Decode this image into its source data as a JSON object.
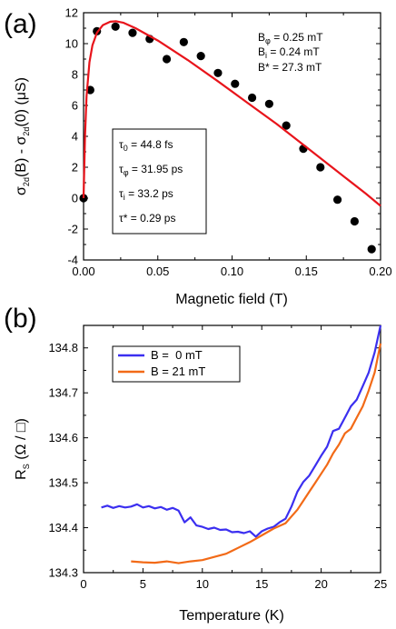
{
  "panels": {
    "a": {
      "label": "(a)",
      "xlabel": "Magnetic field (T)",
      "ylabel_parts": [
        "σ",
        "2d",
        "(B) - σ",
        "2d",
        "(0) (μS)"
      ],
      "params_right": [
        {
          "sym": "B",
          "sub": "φ",
          "val": " = 0.25 mT"
        },
        {
          "sym": "B",
          "sub": "i",
          "val": " = 0.24 mT"
        },
        {
          "sym": "B*",
          "sub": "",
          "val": " = 27.3 mT"
        }
      ],
      "params_box": [
        {
          "sym": "τ",
          "sub": "0",
          "val": " = 44.8 fs"
        },
        {
          "sym": "τ",
          "sub": "φ",
          "val": " = 31.95 ps"
        },
        {
          "sym": "τ",
          "sub": "i",
          "val": " = 33.2 ps"
        },
        {
          "sym": "τ*",
          "sub": "",
          "val": " = 0.29 ps"
        }
      ]
    },
    "b": {
      "label": "(b)",
      "xlabel": "Temperature (K)",
      "ylabel_main": "R",
      "ylabel_sub": "S",
      "ylabel_rest": " (Ω / □)"
    }
  },
  "chart_data": [
    {
      "type": "scatter",
      "panel": "a",
      "xlabel": "Magnetic field (T)",
      "ylabel": "σ2d(B) - σ2d(0) (μS)",
      "xlim": [
        0.0,
        0.2
      ],
      "ylim": [
        -4,
        12
      ],
      "xticks": [
        "0.00",
        "0.05",
        "0.10",
        "0.15",
        "0.20"
      ],
      "yticks": [
        "-4",
        "-2",
        "0",
        "2",
        "4",
        "6",
        "8",
        "10",
        "12"
      ],
      "series": [
        {
          "kind": "points",
          "color": "#000000",
          "x": [
            0.0,
            0.0045,
            0.009,
            0.0215,
            0.033,
            0.0445,
            0.056,
            0.0675,
            0.079,
            0.0905,
            0.102,
            0.1135,
            0.125,
            0.1365,
            0.148,
            0.1595,
            0.171,
            0.1825,
            0.194
          ],
          "y": [
            0.0,
            7.0,
            10.8,
            11.1,
            10.7,
            10.3,
            9.0,
            10.1,
            9.2,
            8.1,
            7.4,
            6.5,
            6.1,
            4.7,
            3.2,
            2.0,
            -0.1,
            -1.5,
            -3.3
          ]
        },
        {
          "kind": "line",
          "color": "#e8141b",
          "x": [
            0.0,
            0.001,
            0.002,
            0.004,
            0.006,
            0.009,
            0.013,
            0.018,
            0.022,
            0.027,
            0.035,
            0.05,
            0.07,
            0.09,
            0.11,
            0.13,
            0.15,
            0.17,
            0.19,
            0.2
          ],
          "y": [
            0.0,
            4.0,
            6.6,
            8.8,
            9.9,
            10.7,
            11.2,
            11.42,
            11.45,
            11.35,
            11.0,
            10.2,
            8.95,
            7.6,
            6.2,
            4.8,
            3.3,
            1.8,
            0.3,
            -0.5
          ]
        }
      ]
    },
    {
      "type": "line",
      "panel": "b",
      "xlabel": "Temperature (K)",
      "ylabel": "RS (Ω / □)",
      "xlim": [
        0,
        25
      ],
      "ylim": [
        134.3,
        134.85
      ],
      "xticks": [
        "0",
        "5",
        "10",
        "15",
        "20",
        "25"
      ],
      "yticks": [
        "134.3",
        "134.4",
        "134.5",
        "134.6",
        "134.7",
        "134.8"
      ],
      "series": [
        {
          "name": "B =  0 mT",
          "color": "#3b2ff0",
          "x": [
            1.5,
            2.0,
            2.5,
            3.0,
            3.5,
            4.0,
            4.5,
            5.0,
            5.5,
            6.0,
            6.5,
            7.0,
            7.5,
            8.0,
            8.5,
            9.0,
            9.5,
            10.0,
            10.5,
            11.0,
            11.5,
            12.0,
            12.5,
            13.0,
            13.5,
            14.0,
            14.5,
            15.0,
            15.5,
            16.0,
            16.5,
            17.0,
            17.5,
            18.0,
            18.5,
            19.0,
            19.5,
            20.0,
            20.5,
            21.0,
            21.5,
            22.0,
            22.5,
            23.0,
            23.5,
            24.0,
            24.5,
            25.0
          ],
          "y": [
            134.445,
            134.449,
            134.444,
            134.448,
            134.445,
            134.447,
            134.452,
            134.445,
            134.448,
            134.443,
            134.446,
            134.44,
            134.444,
            134.438,
            134.412,
            134.423,
            134.405,
            134.402,
            134.397,
            134.4,
            134.395,
            134.396,
            134.39,
            134.391,
            134.388,
            134.392,
            134.38,
            134.392,
            134.398,
            134.402,
            134.412,
            134.42,
            134.447,
            134.48,
            134.502,
            134.516,
            134.538,
            134.56,
            134.58,
            134.615,
            134.62,
            134.645,
            134.67,
            134.685,
            134.715,
            134.745,
            134.79,
            134.85
          ]
        },
        {
          "name": "B = 21 mT",
          "color": "#f26a17",
          "x": [
            4.0,
            5.0,
            6.0,
            7.0,
            8.0,
            9.0,
            10.0,
            11.0,
            12.0,
            13.0,
            14.0,
            15.0,
            16.0,
            17.0,
            17.5,
            18.0,
            18.5,
            19.0,
            19.5,
            20.0,
            20.5,
            21.0,
            21.5,
            22.0,
            22.5,
            23.0,
            23.5,
            24.0,
            24.5,
            25.0
          ],
          "y": [
            134.325,
            134.323,
            134.322,
            134.325,
            134.321,
            134.325,
            134.328,
            134.335,
            134.342,
            134.355,
            134.368,
            134.383,
            134.398,
            134.41,
            134.425,
            134.44,
            134.46,
            134.48,
            134.5,
            134.52,
            134.54,
            134.565,
            134.585,
            134.61,
            134.62,
            134.645,
            134.67,
            134.705,
            134.745,
            134.81
          ]
        }
      ]
    }
  ]
}
